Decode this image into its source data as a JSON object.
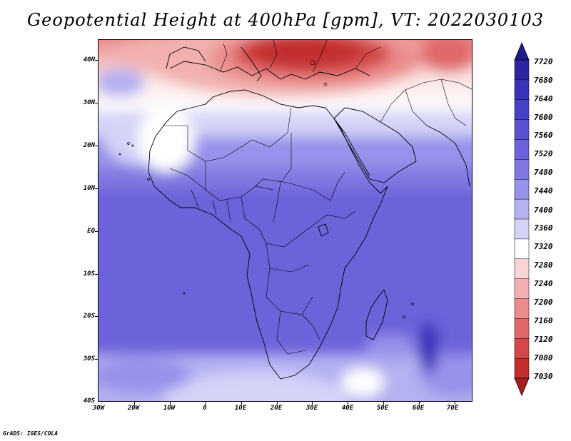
{
  "title": "Geopotential Height at 400hPa [gpm], VT: 2022030103",
  "credit": "GrADS: IGES/COLA",
  "map": {
    "lat_labels": [
      "40N",
      "30N",
      "20N",
      "10N",
      "EQ",
      "10S",
      "20S",
      "30S",
      "40S"
    ],
    "lon_labels": [
      "30W",
      "20W",
      "10W",
      "0",
      "10E",
      "20E",
      "30E",
      "40E",
      "50E",
      "60E",
      "70E"
    ]
  },
  "colorbar": {
    "labels": [
      "7720",
      "7680",
      "7640",
      "7600",
      "7560",
      "7520",
      "7480",
      "7440",
      "7400",
      "7360",
      "7320",
      "7280",
      "7240",
      "7200",
      "7160",
      "7120",
      "7080",
      "7030"
    ],
    "colors": [
      "#1f1a8c",
      "#2c24a3",
      "#3a32b8",
      "#4840c6",
      "#5a52d0",
      "#6b63da",
      "#7f78e2",
      "#9792ea",
      "#b4b1f1",
      "#d4d3f8",
      "#ffffff",
      "#f8d4d4",
      "#f2b0b0",
      "#ea8c8c",
      "#e06868",
      "#d44848",
      "#c22e2e",
      "#a81e1e"
    ]
  }
}
